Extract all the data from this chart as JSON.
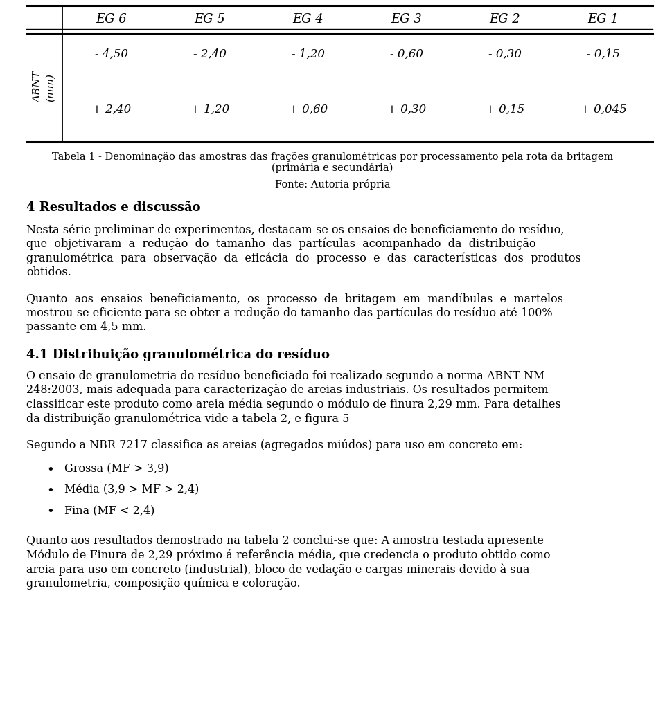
{
  "bg_color": "#ffffff",
  "text_color": "#1a1a1a",
  "table_header": [
    "EG 6",
    "EG 5",
    "EG 4",
    "EG 3",
    "EG 2",
    "EG 1"
  ],
  "table_row1": [
    "- 4,50",
    "- 2,40",
    "- 1,20",
    "- 0,60",
    "- 0,30",
    "- 0,15"
  ],
  "table_row2": [
    "+ 2,40",
    "+ 1,20",
    "+ 0,60",
    "+ 0,30",
    "+ 0,15",
    "+ 0,045"
  ],
  "row_label_line1": "ABNT",
  "row_label_line2": "(mm)",
  "table_caption_line1": "Tabela 1 - Denominação das amostras das frações granulométricas por processamento pela rota da britagem",
  "table_caption_line2": "(primária e secundária)",
  "fonte": "Fonte: Autoria própria",
  "section_heading": "4 Resultados e discussão",
  "para1_lines": [
    "Nesta série preliminar de experimentos, destacam-se os ensaios de beneficiamento do resíduo,",
    "que  objetivaram  a  redução  do  tamanho  das  partículas  acompanhado  da  distribuição",
    "granulométrica  para  observação  da  eficácia  do  processo  e  das  características  dos  produtos",
    "obtidos."
  ],
  "para2_lines": [
    "Quanto  aos  ensaios  beneficiamento,  os  processo  de  britagem  em  mandíbulas  e  martelos",
    "mostrou-se eficiente para se obter a redução do tamanho das partículas do resíduo até 100%",
    "passante em 4,5 mm."
  ],
  "section_heading2": "4.1 Distribuição granulométrica do resíduo",
  "para3_lines": [
    "O ensaio de granulometria do resíduo beneficiado foi realizado segundo a norma ABNT NM",
    "248:2003, mais adequada para caracterização de areias industriais. Os resultados permitem",
    "classificar este produto como areia média segundo o módulo de finura 2,29 mm. Para detalhes",
    "da distribuição granulométrica vide a tabela 2, e figura 5"
  ],
  "para4": "Segundo a NBR 7217 classifica as areias (agregados miúdos) para uso em concreto em:",
  "bullets": [
    "Grossa (MF > 3,9)",
    "Média (3,9 > MF > 2,4)",
    "Fina (MF < 2,4)"
  ],
  "para5_lines": [
    "Quanto aos resultados demostrado na tabela 2 conclui-se que: A amostra testada apresente",
    "Módulo de Finura de 2,29 próximo á referência média, que credencia o produto obtido como",
    "areia para uso em concreto (industrial), bloco de vedação e cargas minerais devido à sua",
    "granulometria, composição química e coloração."
  ]
}
